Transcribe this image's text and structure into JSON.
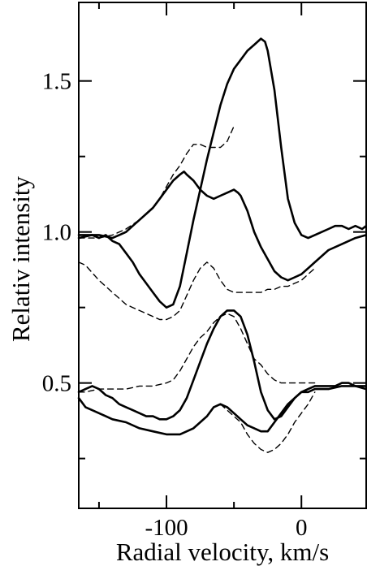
{
  "chart_data": {
    "type": "line",
    "title": "",
    "xlabel": "Radial velocity, km/s",
    "ylabel": "Relativ intensity",
    "xlim": [
      -165,
      48
    ],
    "ylim": [
      0.085,
      1.76
    ],
    "x_ticks": [
      -100,
      0
    ],
    "x_tick_labels": [
      "-100",
      "0"
    ],
    "x_minor_ticks": [
      -150,
      -50
    ],
    "y_ticks": [
      0.5,
      1.0,
      1.5
    ],
    "y_tick_labels": [
      "0.5",
      "1.0",
      "1.5"
    ],
    "y_minor_ticks": [
      0.25,
      0.75,
      1.25
    ],
    "grid": false,
    "legend": "none",
    "series": [
      {
        "style": "solid",
        "x": [
          -165,
          -155,
          -150,
          -145,
          -140,
          -135,
          -130,
          -125,
          -120,
          -115,
          -110,
          -105,
          -100,
          -95,
          -90,
          -85,
          -80,
          -75,
          -70,
          -65,
          -60,
          -55,
          -50,
          -45,
          -40,
          -35,
          -30,
          -27,
          -25,
          -20,
          -15,
          -10,
          -5,
          0,
          5,
          10,
          15,
          20,
          25,
          30,
          35,
          40,
          45,
          48
        ],
        "y": [
          0.98,
          0.99,
          0.98,
          0.99,
          0.97,
          0.96,
          0.93,
          0.9,
          0.86,
          0.83,
          0.8,
          0.77,
          0.75,
          0.76,
          0.82,
          0.93,
          1.04,
          1.14,
          1.24,
          1.33,
          1.42,
          1.49,
          1.54,
          1.57,
          1.6,
          1.62,
          1.64,
          1.63,
          1.6,
          1.47,
          1.28,
          1.11,
          1.03,
          0.99,
          0.98,
          0.99,
          1.0,
          1.01,
          1.02,
          1.02,
          1.01,
          1.02,
          1.01,
          1.02
        ]
      },
      {
        "style": "solid",
        "x": [
          -165,
          -160,
          -150,
          -140,
          -135,
          -130,
          -125,
          -120,
          -115,
          -110,
          -105,
          -100,
          -95,
          -90,
          -87,
          -85,
          -80,
          -75,
          -70,
          -65,
          -60,
          -55,
          -50,
          -47,
          -45,
          -40,
          -35,
          -30,
          -25,
          -20,
          -15,
          -10,
          -5,
          0,
          10,
          20,
          30,
          40,
          48
        ],
        "y": [
          0.99,
          0.99,
          0.99,
          0.98,
          0.99,
          1.0,
          1.02,
          1.04,
          1.06,
          1.08,
          1.11,
          1.14,
          1.17,
          1.19,
          1.2,
          1.19,
          1.17,
          1.14,
          1.12,
          1.11,
          1.12,
          1.13,
          1.14,
          1.13,
          1.12,
          1.07,
          1.0,
          0.95,
          0.91,
          0.87,
          0.85,
          0.84,
          0.85,
          0.86,
          0.9,
          0.94,
          0.96,
          0.98,
          0.99
        ]
      },
      {
        "style": "dashed",
        "x": [
          -165,
          -160,
          -150,
          -140,
          -135,
          -130,
          -125,
          -120,
          -115,
          -110,
          -105,
          -100,
          -95,
          -90,
          -85,
          -80,
          -75,
          -70,
          -65,
          -60,
          -55,
          -50,
          -45,
          -40,
          -35,
          -30,
          -25,
          -20,
          -15,
          -10,
          -5,
          0,
          5,
          10
        ],
        "y": [
          0.9,
          0.89,
          0.84,
          0.8,
          0.78,
          0.76,
          0.75,
          0.74,
          0.73,
          0.72,
          0.71,
          0.71,
          0.72,
          0.74,
          0.79,
          0.84,
          0.88,
          0.9,
          0.88,
          0.84,
          0.81,
          0.8,
          0.8,
          0.8,
          0.8,
          0.8,
          0.81,
          0.81,
          0.82,
          0.82,
          0.83,
          0.84,
          0.86,
          0.88
        ]
      },
      {
        "style": "dashed",
        "x": [
          -165,
          -150,
          -140,
          -130,
          -120,
          -110,
          -105,
          -100,
          -95,
          -90,
          -85,
          -80,
          -75,
          -70,
          -65,
          -60,
          -55,
          -52,
          -50
        ],
        "y": [
          0.98,
          0.98,
          0.99,
          1.01,
          1.04,
          1.08,
          1.11,
          1.15,
          1.19,
          1.22,
          1.26,
          1.29,
          1.29,
          1.28,
          1.28,
          1.28,
          1.3,
          1.33,
          1.35
        ]
      },
      {
        "style": "solid",
        "x": [
          -165,
          -160,
          -155,
          -150,
          -145,
          -140,
          -135,
          -130,
          -125,
          -120,
          -115,
          -110,
          -105,
          -100,
          -95,
          -90,
          -85,
          -80,
          -75,
          -70,
          -65,
          -60,
          -55,
          -50,
          -45,
          -40,
          -35,
          -30,
          -25,
          -20,
          -15,
          -10,
          -5,
          0,
          5,
          10,
          15,
          20,
          25,
          30,
          35,
          40,
          45,
          48
        ],
        "y": [
          0.47,
          0.48,
          0.49,
          0.48,
          0.46,
          0.45,
          0.43,
          0.42,
          0.41,
          0.4,
          0.39,
          0.39,
          0.38,
          0.38,
          0.39,
          0.41,
          0.45,
          0.51,
          0.57,
          0.63,
          0.68,
          0.72,
          0.74,
          0.74,
          0.72,
          0.66,
          0.57,
          0.47,
          0.41,
          0.38,
          0.39,
          0.42,
          0.45,
          0.47,
          0.48,
          0.49,
          0.49,
          0.49,
          0.49,
          0.5,
          0.5,
          0.49,
          0.49,
          0.49
        ]
      },
      {
        "style": "solid",
        "x": [
          -165,
          -160,
          -150,
          -140,
          -130,
          -120,
          -110,
          -100,
          -95,
          -90,
          -85,
          -80,
          -75,
          -70,
          -65,
          -60,
          -55,
          -50,
          -45,
          -40,
          -35,
          -30,
          -25,
          -20,
          -15,
          -10,
          -5,
          0,
          5,
          10,
          20,
          30,
          40,
          48
        ],
        "y": [
          0.45,
          0.42,
          0.4,
          0.38,
          0.37,
          0.35,
          0.34,
          0.33,
          0.33,
          0.33,
          0.34,
          0.35,
          0.37,
          0.39,
          0.42,
          0.43,
          0.42,
          0.4,
          0.38,
          0.36,
          0.35,
          0.34,
          0.34,
          0.37,
          0.4,
          0.43,
          0.45,
          0.47,
          0.47,
          0.48,
          0.48,
          0.49,
          0.49,
          0.48
        ]
      },
      {
        "style": "dashed",
        "x": [
          -165,
          -160,
          -150,
          -140,
          -130,
          -120,
          -110,
          -100,
          -95,
          -90,
          -85,
          -80,
          -75,
          -70,
          -65,
          -60,
          -55,
          -50,
          -45,
          -40,
          -35,
          -30,
          -25,
          -20,
          -15,
          -10,
          -5,
          0,
          5,
          10
        ],
        "y": [
          0.47,
          0.47,
          0.48,
          0.48,
          0.48,
          0.49,
          0.49,
          0.5,
          0.51,
          0.54,
          0.58,
          0.62,
          0.65,
          0.67,
          0.7,
          0.72,
          0.73,
          0.72,
          0.68,
          0.63,
          0.58,
          0.56,
          0.53,
          0.51,
          0.5,
          0.5,
          0.5,
          0.5,
          0.5,
          0.5
        ]
      },
      {
        "style": "dashed",
        "x": [
          -60,
          -55,
          -50,
          -45,
          -40,
          -35,
          -30,
          -25,
          -20,
          -15,
          -10,
          -5,
          0,
          5,
          10
        ],
        "y": [
          0.43,
          0.41,
          0.39,
          0.37,
          0.33,
          0.3,
          0.28,
          0.27,
          0.28,
          0.3,
          0.33,
          0.37,
          0.4,
          0.43,
          0.47
        ]
      }
    ]
  }
}
